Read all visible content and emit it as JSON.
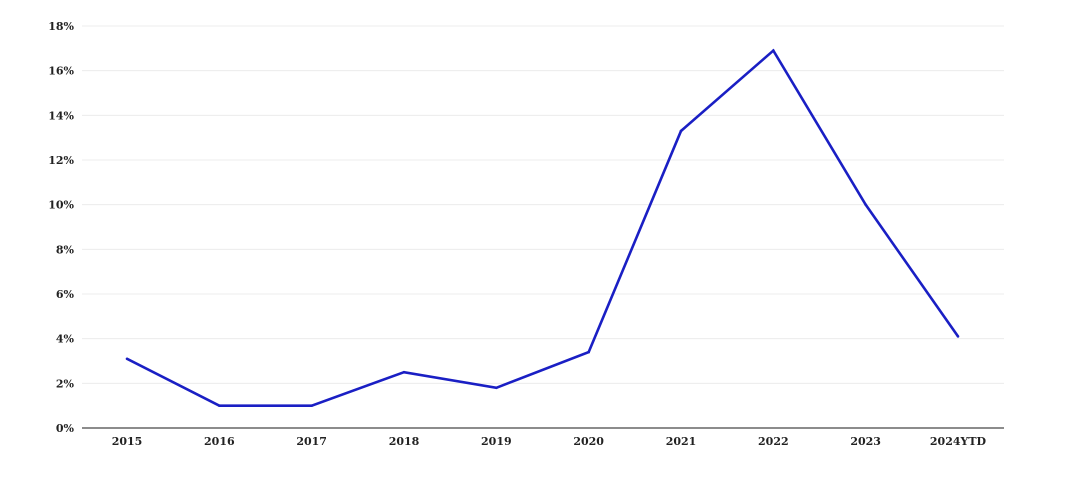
{
  "chart_data": {
    "type": "line",
    "title": "",
    "xlabel": "",
    "ylabel": "",
    "categories": [
      "2015",
      "2016",
      "2017",
      "2018",
      "2019",
      "2020",
      "2021",
      "2022",
      "2023",
      "2024YTD"
    ],
    "series": [
      {
        "values": [
          3.1,
          1.0,
          1.0,
          2.5,
          1.8,
          3.4,
          13.3,
          16.9,
          10.0,
          4.1
        ],
        "color": "#1a1fc4"
      }
    ],
    "ylim": [
      0,
      18
    ],
    "yticks": [
      0,
      2,
      4,
      6,
      8,
      10,
      12,
      14,
      16,
      18
    ],
    "ytick_labels": [
      "0%",
      "2%",
      "4%",
      "6%",
      "8%",
      "10%",
      "12%",
      "14%",
      "16%",
      "18%"
    ],
    "y_unit": "%",
    "grid": true,
    "legend": "none"
  }
}
